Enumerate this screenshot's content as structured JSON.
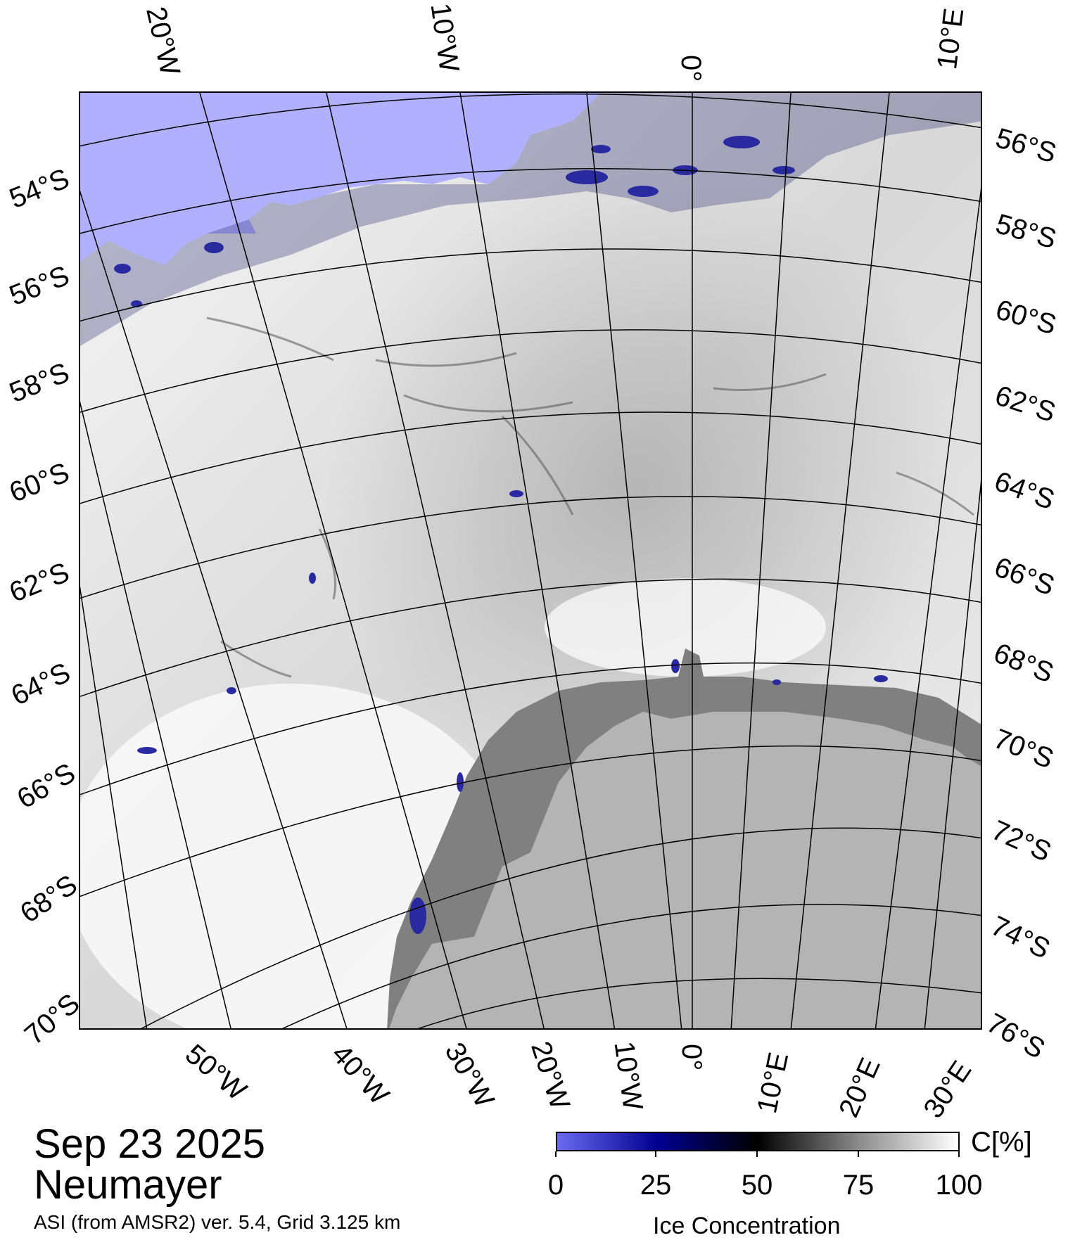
{
  "map": {
    "date": "Sep 23 2025",
    "station": "Neumayer",
    "source": "ASI (from AMSR2) ver. 5.4,  Grid 3.125 km",
    "top_lon_labels": [
      "20°W",
      "10°W",
      "0°",
      "10°E"
    ],
    "left_lat_labels": [
      "54°S",
      "56°S",
      "58°S",
      "60°S",
      "62°S",
      "64°S",
      "66°S",
      "68°S",
      "70°S"
    ],
    "right_lat_labels": [
      "56°S",
      "58°S",
      "60°S",
      "62°S",
      "64°S",
      "66°S",
      "68°S",
      "70°S",
      "72°S",
      "74°S",
      "76°S"
    ],
    "bottom_lon_labels": [
      "50°W",
      "40°W",
      "30°W",
      "20°W",
      "10°W",
      "0°",
      "10°E",
      "20°E",
      "30°E"
    ],
    "colors": {
      "open_water": "#b0b0ff",
      "land": "#b4b4b4",
      "ice_shelf": "#808080",
      "sea_ice": "#efefef",
      "low_concentration": "#2a2aa0",
      "graticule": "#000000"
    }
  },
  "colorbar": {
    "unit": "C[%]",
    "title": "Ice Concentration",
    "ticks": [
      "0",
      "25",
      "50",
      "75",
      "100"
    ],
    "stops": [
      "#6a6af0",
      "#000090",
      "#000000",
      "#8a8a8a",
      "#ffffff"
    ]
  }
}
